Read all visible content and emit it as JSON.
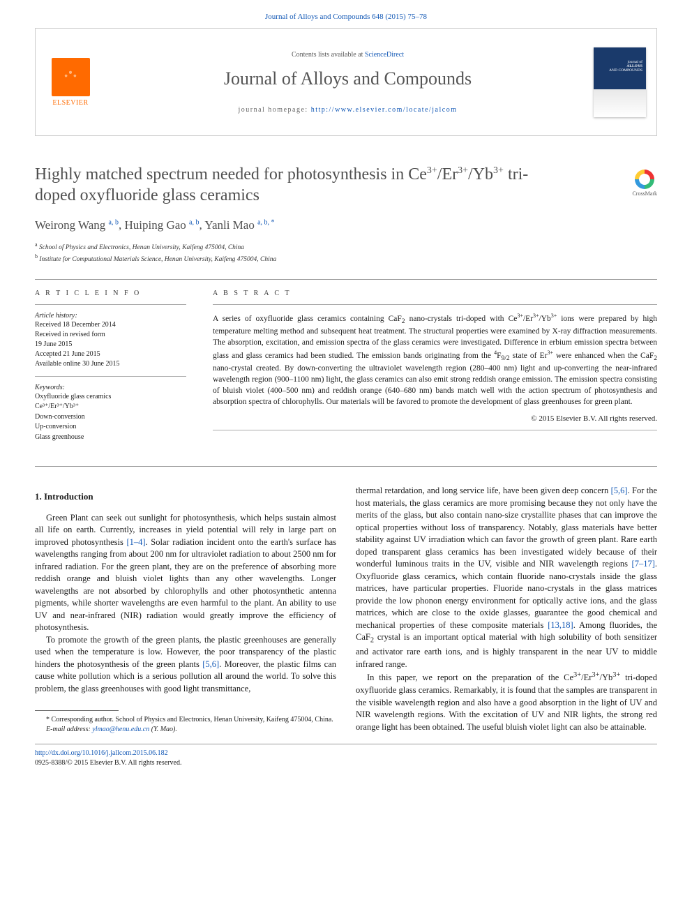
{
  "citation": "Journal of Alloys and Compounds 648 (2015) 75–78",
  "header": {
    "contents_prefix": "Contents lists available at ",
    "contents_link": "ScienceDirect",
    "journal_name": "Journal of Alloys and Compounds",
    "homepage_prefix": "journal homepage: ",
    "homepage_url": "http://www.elsevier.com/locate/jalcom",
    "publisher": "ELSEVIER",
    "cover_small_text": "journal of\nALLOYS\nAND COMPOUNDS"
  },
  "crossmark_label": "CrossMark",
  "title_html": "Highly matched spectrum needed for photosynthesis in Ce<sup>3+</sup>/Er<sup>3+</sup>/Yb<sup>3+</sup> tri-doped oxyfluoride glass ceramics",
  "authors_html": "Weirong Wang <sup>a, b</sup>, Huiping Gao <sup>a, b</sup>, Yanli Mao <sup>a, b, *</sup>",
  "affiliations": [
    {
      "marker": "a",
      "text": "School of Physics and Electronics, Henan University, Kaifeng 475004, China"
    },
    {
      "marker": "b",
      "text": "Institute for Computational Materials Science, Henan University, Kaifeng 475004, China"
    }
  ],
  "article_info": {
    "heading": "A R T I C L E   I N F O",
    "history_label": "Article history:",
    "history": [
      "Received 18 December 2014",
      "Received in revised form",
      "19 June 2015",
      "Accepted 21 June 2015",
      "Available online 30 June 2015"
    ],
    "keywords_label": "Keywords:",
    "keywords": [
      "Oxyfluoride glass ceramics",
      "Ce³⁺/Er³⁺/Yb³⁺",
      "Down-conversion",
      "Up-conversion",
      "Glass greenhouse"
    ]
  },
  "abstract": {
    "heading": "A B S T R A C T",
    "text_html": "A series of oxyfluoride glass ceramics containing CaF<sub>2</sub> nano-crystals tri-doped with Ce<sup>3+</sup>/Er<sup>3+</sup>/Yb<sup>3+</sup> ions were prepared by high temperature melting method and subsequent heat treatment. The structural properties were examined by X-ray diffraction measurements. The absorption, excitation, and emission spectra of the glass ceramics were investigated. Difference in erbium emission spectra between glass and glass ceramics had been studied. The emission bands originating from the <sup>4</sup>F<sub>9/2</sub> state of Er<sup>3+</sup> were enhanced when the CaF<sub>2</sub> nano-crystal created. By down-converting the ultraviolet wavelength region (280–400 nm) light and up-converting the near-infrared wavelength region (900–1100 nm) light, the glass ceramics can also emit strong reddish orange emission. The emission spectra consisting of bluish violet (400–500 nm) and reddish orange (640–680 nm) bands match well with the action spectrum of photosynthesis and absorption spectra of chlorophylls. Our materials will be favored to promote the development of glass greenhouses for green plant.",
    "copyright": "© 2015 Elsevier B.V. All rights reserved."
  },
  "section1_heading": "1. Introduction",
  "body": {
    "p1_html": "Green Plant can seek out sunlight for photosynthesis, which helps sustain almost all life on earth. Currently, increases in yield potential will rely in large part on improved photosynthesis <span class='cite'>[1–4]</span>. Solar radiation incident onto the earth's surface has wavelengths ranging from about 200 nm for ultraviolet radiation to about 2500 nm for infrared radiation. For the green plant, they are on the preference of absorbing more reddish orange and bluish violet lights than any other wavelengths. Longer wavelengths are not absorbed by chlorophylls and other photosynthetic antenna pigments, while shorter wavelengths are even harmful to the plant. An ability to use UV and near-infrared (NIR) radiation would greatly improve the efficiency of photosynthesis.",
    "p2_html": "To promote the growth of the green plants, the plastic greenhouses are generally used when the temperature is low. However, the poor transparency of the plastic hinders the photosynthesis of the green plants <span class='cite'>[5,6]</span>. Moreover, the plastic films can cause white pollution which is a serious pollution all around the world. To solve this problem, the glass greenhouses with good light transmittance,",
    "p3_html": "thermal retardation, and long service life, have been given deep concern <span class='cite'>[5,6]</span>. For the host materials, the glass ceramics are more promising because they not only have the merits of the glass, but also contain nano-size crystallite phases that can improve the optical properties without loss of transparency. Notably, glass materials have better stability against UV irradiation which can favor the growth of green plant. Rare earth doped transparent glass ceramics has been investigated widely because of their wonderful luminous traits in the UV, visible and NIR wavelength regions <span class='cite'>[7–17]</span>. Oxyfluoride glass ceramics, which contain fluoride nano-crystals inside the glass matrices, have particular properties. Fluoride nano-crystals in the glass matrices provide the low phonon energy environment for optically active ions, and the glass matrices, which are close to the oxide glasses, guarantee the good chemical and mechanical properties of these composite materials <span class='cite'>[13,18]</span>. Among fluorides, the CaF<sub>2</sub> crystal is an important optical material with high solubility of both sensitizer and activator rare earth ions, and is highly transparent in the near UV to middle infrared range.",
    "p4_html": "In this paper, we report on the preparation of the Ce<sup>3+</sup>/Er<sup>3+</sup>/Yb<sup>3+</sup> tri-doped oxyfluoride glass ceramics. Remarkably, it is found that the samples are transparent in the visible wavelength region and also have a good absorption in the light of UV and NIR wavelength regions. With the excitation of UV and NIR lights, the strong red orange light has been obtained. The useful bluish violet light can also be attainable."
  },
  "corresponding": {
    "label": "* Corresponding author. School of Physics and Electronics, Henan University, Kaifeng 475004, China.",
    "email_label": "E-mail address: ",
    "email": "ylmao@henu.edu.cn",
    "email_suffix": " (Y. Mao)."
  },
  "footer": {
    "doi": "http://dx.doi.org/10.1016/j.jallcom.2015.06.182",
    "issn_line": "0925-8388/© 2015 Elsevier B.V. All rights reserved."
  }
}
